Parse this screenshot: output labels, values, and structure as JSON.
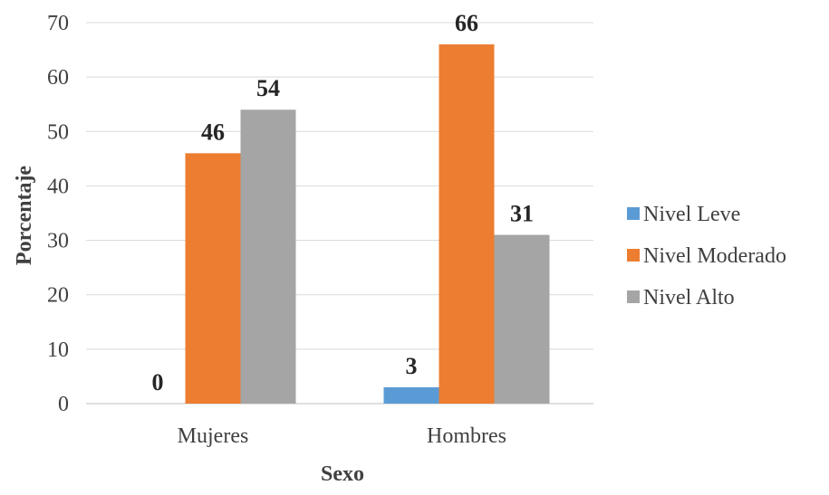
{
  "chart_data": {
    "type": "bar",
    "categories": [
      "Mujeres",
      "Hombres"
    ],
    "series": [
      {
        "name": "Nivel Leve",
        "values": [
          0,
          3
        ],
        "color": "#5B9BD5"
      },
      {
        "name": "Nivel Moderado",
        "values": [
          46,
          66
        ],
        "color": "#ED7D31"
      },
      {
        "name": "Nivel Alto",
        "values": [
          54,
          31
        ],
        "color": "#A5A5A5"
      }
    ],
    "xlabel": "Sexo",
    "ylabel": "Porcentaje",
    "ylim": [
      0,
      70
    ],
    "yticks": [
      0,
      10,
      20,
      30,
      40,
      50,
      60,
      70
    ],
    "grid": true,
    "legend_position": "right",
    "data_labels": true
  }
}
